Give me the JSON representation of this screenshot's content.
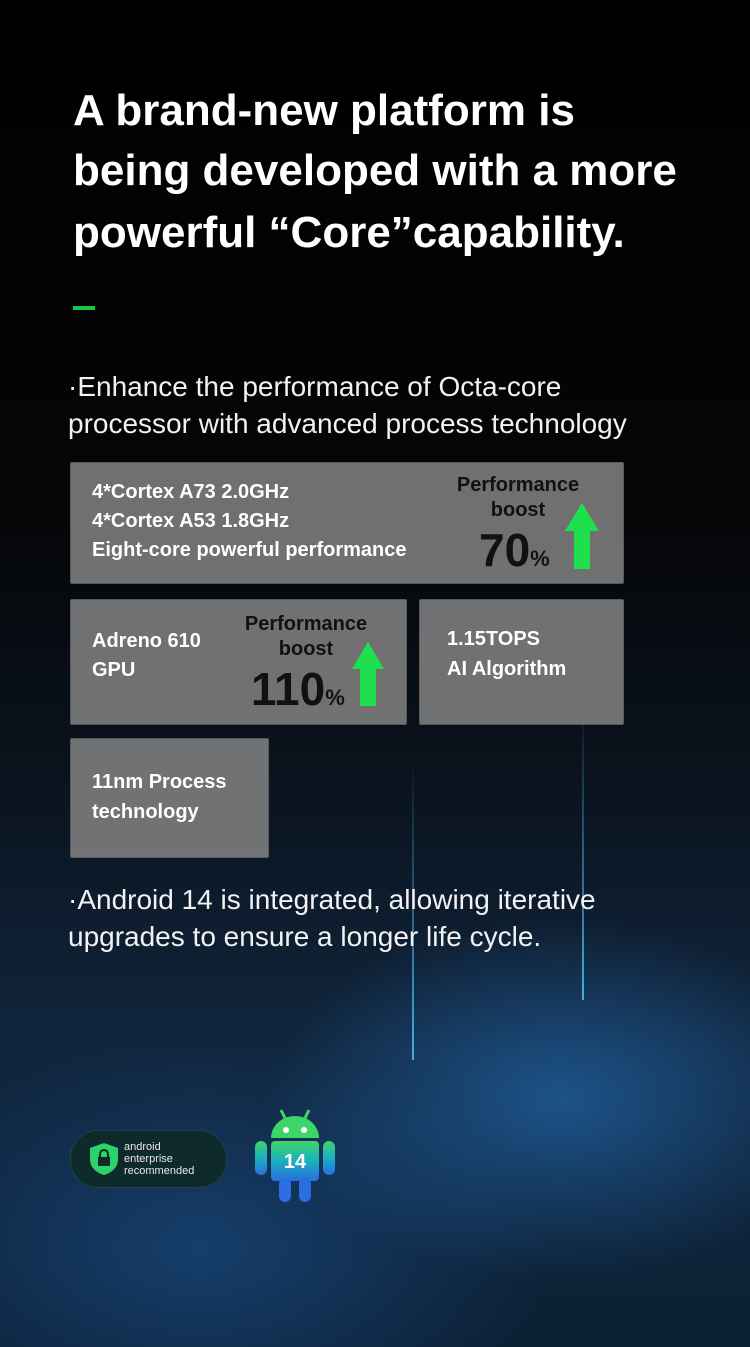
{
  "headline": [
    "A brand-new platform is",
    "being developed with a more",
    "powerful “Core”capability."
  ],
  "bullets": [
    [
      "·Enhance the performance of Octa-core",
      "processor with advanced process technology"
    ],
    [
      "·Android 14 is integrated, allowing iterative",
      "upgrades to ensure a longer life cycle."
    ]
  ],
  "cards": [
    {
      "lines": [
        "4*Cortex A73 2.0GHz",
        "4*Cortex A53 1.8GHz",
        "Eight-core powerful performance"
      ],
      "boost_label": [
        "Performance",
        "boost"
      ],
      "boost": 70,
      "unit": "%"
    },
    {
      "lines": [
        "Adreno 610",
        "GPU"
      ],
      "boost_label": [
        "Performance",
        "boost"
      ],
      "boost": 110,
      "unit": "%"
    },
    {
      "lines": [
        "1.15TOPS",
        "AI Algorithm"
      ]
    },
    {
      "lines": [
        "11nm Process",
        "technology"
      ]
    }
  ],
  "badge": [
    "android",
    "enterprise",
    "recommended"
  ],
  "android_version": "14"
}
